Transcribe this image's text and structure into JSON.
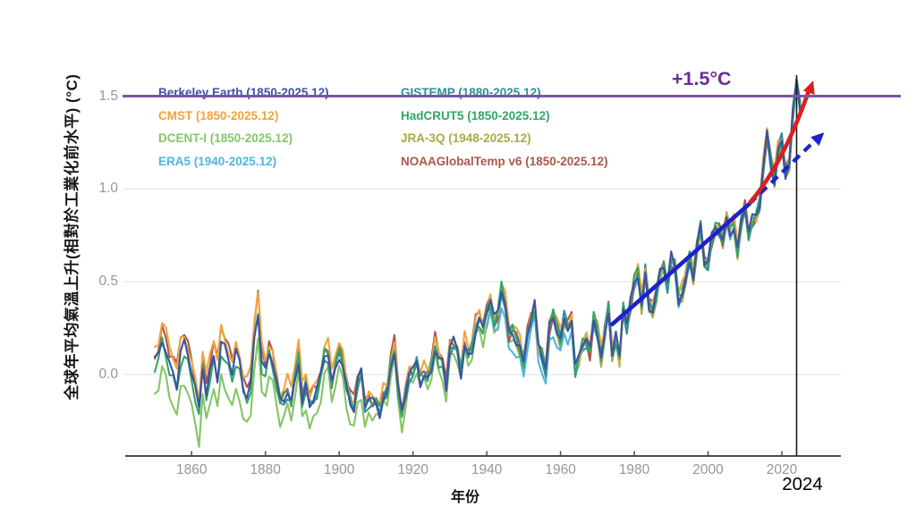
{
  "figure": {
    "y_axis_title": "全球年平均氣溫上升(相對於工業化前水平) (°C)",
    "x_axis_title": "年份",
    "threshold_label": "+1.5°C",
    "year_highlight": "2024",
    "background": "#ffffff"
  },
  "axes": {
    "y_ticks": [
      {
        "label": "1.5",
        "value": 1.5
      },
      {
        "label": "1.0",
        "value": 1.0
      },
      {
        "label": "0.5",
        "value": 0.5
      },
      {
        "label": "0.0",
        "value": 0.0
      }
    ],
    "x_ticks": [
      {
        "label": "1860",
        "value": 1860
      },
      {
        "label": "1880",
        "value": 1880
      },
      {
        "label": "1900",
        "value": 1900
      },
      {
        "label": "1920",
        "value": 1920
      },
      {
        "label": "1940",
        "value": 1940
      },
      {
        "label": "1960",
        "value": 1960
      },
      {
        "label": "1980",
        "value": 1980
      },
      {
        "label": "2000",
        "value": 2000
      },
      {
        "label": "2020",
        "value": 2020
      }
    ],
    "tick_color": "#969696",
    "grid_color": "#e9e9e9",
    "axis_line_color": "#4d4d4d"
  },
  "legend": {
    "items": [
      {
        "label": "Berkeley Earth (1850-2025.12)",
        "color": "#3A53A4",
        "column": 0,
        "row": 0
      },
      {
        "label": "CMST (1850-2025.12)",
        "color": "#F0A43E",
        "column": 0,
        "row": 1
      },
      {
        "label": "DCENT-I (1850-2025.12)",
        "color": "#85C565",
        "column": 0,
        "row": 2
      },
      {
        "label": "ERA5 (1940-2025.12)",
        "color": "#4EB6DB",
        "column": 0,
        "row": 3
      },
      {
        "label": "GISTEMP (1880-2025.12)",
        "color": "#2E8E96",
        "column": 1,
        "row": 0
      },
      {
        "label": "HadCRUT5 (1850-2025.12)",
        "color": "#33A566",
        "column": 1,
        "row": 1
      },
      {
        "label": "JRA-3Q (1948-2025.12)",
        "color": "#A9AA44",
        "column": 1,
        "row": 2
      },
      {
        "label": "NOAAGlobalTemp v6 (1850-2025.12)",
        "color": "#A9594A",
        "column": 1,
        "row": 3
      }
    ]
  },
  "chart_data": {
    "type": "line",
    "title": "",
    "xlabel": "年份",
    "ylabel": "全球年平均氣溫上升(相對於工業化前水平) (°C)",
    "xlim": [
      1842,
      2036
    ],
    "ylim": [
      -0.44,
      1.73
    ],
    "grid": "horizontal",
    "legend_position": "top-left-inside",
    "x_start_year": 1850,
    "x_end_year": 2025,
    "base_values": [
      0.06,
      0.1,
      0.2,
      0.14,
      0.06,
      0.03,
      -0.04,
      0.12,
      0.16,
      0.1,
      0.0,
      -0.1,
      -0.2,
      0.05,
      -0.1,
      0.02,
      0.12,
      0.0,
      0.18,
      0.14,
      0.08,
      0.0,
      0.1,
      0.05,
      -0.08,
      -0.12,
      -0.05,
      0.22,
      0.36,
      0.08,
      0.02,
      0.12,
      0.06,
      -0.06,
      -0.16,
      -0.14,
      -0.1,
      -0.16,
      -0.02,
      0.1,
      -0.14,
      -0.06,
      -0.16,
      -0.13,
      -0.1,
      -0.02,
      0.1,
      0.1,
      -0.06,
      0.04,
      0.12,
      0.06,
      -0.06,
      -0.14,
      -0.18,
      -0.04,
      0.0,
      -0.18,
      -0.14,
      -0.16,
      -0.16,
      -0.2,
      -0.12,
      -0.1,
      0.06,
      0.14,
      -0.08,
      -0.22,
      -0.12,
      0.0,
      0.0,
      0.06,
      -0.04,
      0.0,
      -0.02,
      0.04,
      0.16,
      0.08,
      0.06,
      -0.08,
      0.14,
      0.16,
      0.12,
      0.0,
      0.16,
      0.1,
      0.14,
      0.26,
      0.3,
      0.24,
      0.34,
      0.4,
      0.28,
      0.32,
      0.46,
      0.38,
      0.22,
      0.24,
      0.2,
      0.16,
      0.06,
      0.22,
      0.3,
      0.36,
      0.14,
      0.1,
      0.02,
      0.26,
      0.32,
      0.26,
      0.2,
      0.3,
      0.26,
      0.3,
      0.02,
      0.08,
      0.16,
      0.18,
      0.12,
      0.3,
      0.24,
      0.1,
      0.22,
      0.36,
      0.12,
      0.2,
      0.08,
      0.36,
      0.26,
      0.38,
      0.5,
      0.55,
      0.38,
      0.55,
      0.38,
      0.36,
      0.44,
      0.55,
      0.58,
      0.48,
      0.62,
      0.58,
      0.4,
      0.44,
      0.52,
      0.64,
      0.54,
      0.7,
      0.8,
      0.6,
      0.6,
      0.72,
      0.78,
      0.78,
      0.72,
      0.84,
      0.78,
      0.82,
      0.68,
      0.82,
      0.9,
      0.76,
      0.82,
      0.84,
      0.92,
      1.12,
      1.3,
      1.16,
      1.06,
      1.22,
      1.26,
      1.08,
      1.14,
      1.4,
      1.57,
      1.44
    ],
    "series": [
      {
        "name": "DCENT-I",
        "color": "#85C565",
        "start": 1850,
        "end": 2025,
        "offsets": [
          [
            1880,
            -0.18
          ],
          [
            1910,
            -0.1
          ],
          [
            1950,
            -0.05
          ],
          [
            9999,
            0
          ]
        ]
      },
      {
        "name": "JRA-3Q",
        "color": "#A9AA44",
        "start": 1948,
        "end": 2025,
        "offsets": [
          [
            9999,
            -0.02
          ]
        ]
      },
      {
        "name": "ERA5",
        "color": "#4EB6DB",
        "start": 1940,
        "end": 2025,
        "offsets": [
          [
            1965,
            -0.08
          ],
          [
            9999,
            -0.01
          ]
        ]
      },
      {
        "name": "NOAAGlobalTemp v6",
        "color": "#A9594A",
        "start": 1850,
        "end": 2025,
        "offsets": [
          [
            1880,
            0.06
          ],
          [
            1940,
            0.03
          ],
          [
            9999,
            0
          ]
        ]
      },
      {
        "name": "GISTEMP",
        "color": "#2E8E96",
        "start": 1880,
        "end": 2025,
        "offsets": [
          [
            9999,
            0
          ]
        ]
      },
      {
        "name": "CMST",
        "color": "#F0A43E",
        "start": 1850,
        "end": 2025,
        "offsets": [
          [
            1900,
            0.07
          ],
          [
            1950,
            0.03
          ],
          [
            9999,
            0.02
          ]
        ]
      },
      {
        "name": "HadCRUT5",
        "color": "#33A566",
        "start": 1850,
        "end": 2025,
        "offsets": [
          [
            1880,
            -0.04
          ],
          [
            9999,
            0
          ]
        ]
      },
      {
        "name": "Berkeley Earth",
        "color": "#3A53A4",
        "start": 1850,
        "end": 2025,
        "offsets": [
          [
            9999,
            0
          ]
        ]
      }
    ],
    "threshold": {
      "value": 1.5,
      "label": "+1.5°C",
      "line_color": "#7a55a4",
      "label_color": "#6B2D91"
    },
    "annotations": {
      "vline_year": 2024,
      "vline_color": "#1a1a1a",
      "blue_trend": {
        "solid_from": [
          1974.0,
          0.27
        ],
        "solid_to": [
          2011.2,
          0.92
        ],
        "dashed_to": [
          2030.5,
          1.29
        ],
        "tip": [
          2031.5,
          1.305
        ],
        "color": "#1E22CC"
      },
      "red_trend": {
        "from": [
          2011.5,
          0.93
        ],
        "control": [
          2020.5,
          1.14
        ],
        "to": [
          2027.5,
          1.54
        ],
        "tip": [
          2028.5,
          1.585
        ],
        "color": "#DB1F1F"
      }
    }
  }
}
